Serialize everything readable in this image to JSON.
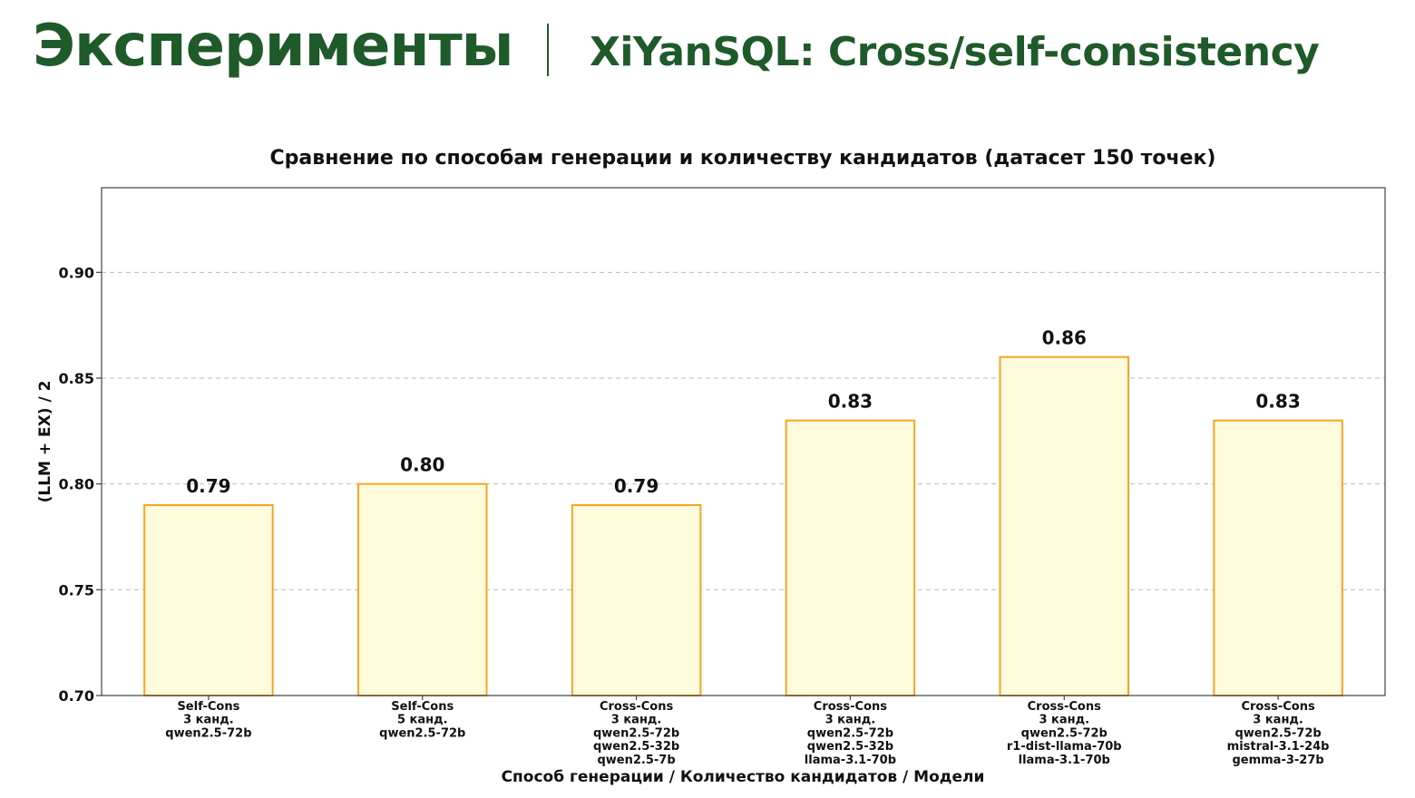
{
  "header": {
    "section_title": "Эксперименты",
    "slide_title": "XiYanSQL: Cross/self-consistency"
  },
  "colors": {
    "brand": "#1f5a2a",
    "bar_fill": "#fefbdc",
    "bar_stroke": "#f5a623",
    "grid": "#bbbbbb"
  },
  "chart_data": {
    "type": "bar",
    "title": "Сравнение по способам генерации и количеству кандидатов (датасет 150 точек)",
    "xlabel": "Способ генерации / Количество кандидатов / Модели",
    "ylabel": "(LLM + EX) / 2",
    "ylim": [
      0.7,
      0.94
    ],
    "yticks": [
      "0.70",
      "0.75",
      "0.80",
      "0.85",
      "0.90"
    ],
    "grid": true,
    "categories": [
      [
        "Self-Cons",
        "3 канд.",
        "qwen2.5-72b"
      ],
      [
        "Self-Cons",
        "5 канд.",
        "qwen2.5-72b"
      ],
      [
        "Cross-Cons",
        "3 канд.",
        "qwen2.5-72b",
        "qwen2.5-32b",
        "qwen2.5-7b"
      ],
      [
        "Cross-Cons",
        "3 канд.",
        "qwen2.5-72b",
        "qwen2.5-32b",
        "llama-3.1-70b"
      ],
      [
        "Cross-Cons",
        "3 канд.",
        "qwen2.5-72b",
        "r1-dist-llama-70b",
        "llama-3.1-70b"
      ],
      [
        "Cross-Cons",
        "3 канд.",
        "qwen2.5-72b",
        "mistral-3.1-24b",
        "gemma-3-27b"
      ]
    ],
    "values": [
      0.79,
      0.8,
      0.79,
      0.83,
      0.86,
      0.83
    ],
    "value_labels": [
      "0.79",
      "0.80",
      "0.79",
      "0.83",
      "0.86",
      "0.83"
    ]
  }
}
